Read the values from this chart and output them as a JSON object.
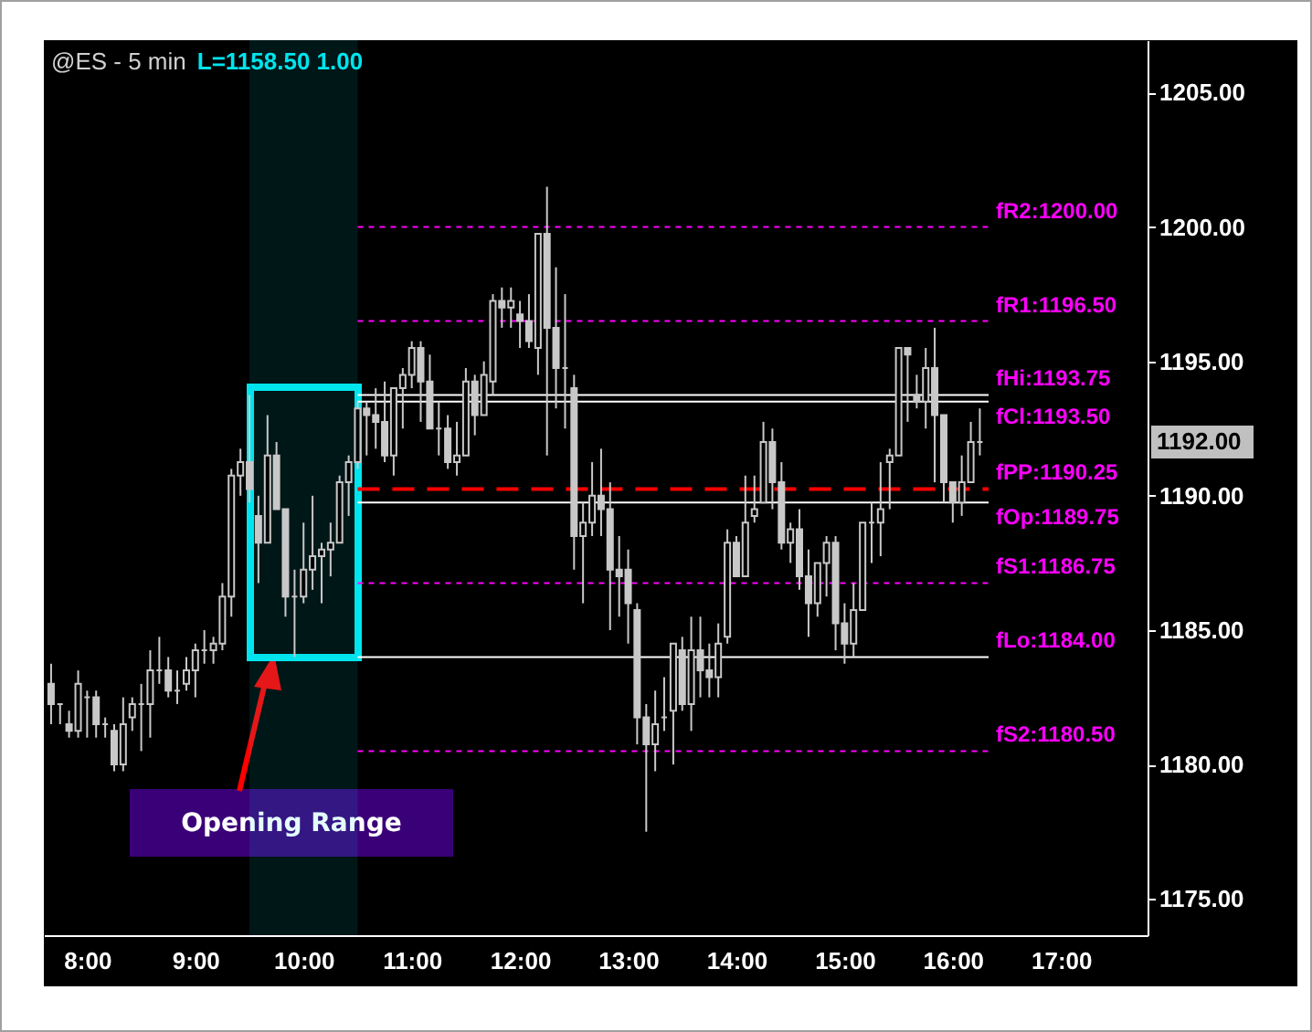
{
  "chart_data": {
    "type": "candlestick",
    "title": "@ES - 5 min",
    "subtitle": "L=1158.50  1.00",
    "x": [
      7.667,
      7.75,
      7.833,
      7.917,
      8,
      8.083,
      8.167,
      8.25,
      8.333,
      8.417,
      8.5,
      8.583,
      8.667,
      8.75,
      8.833,
      8.917,
      9,
      9.083,
      9.167,
      9.25,
      9.333,
      9.417,
      9.5,
      9.583,
      9.667,
      9.75,
      9.833,
      9.917,
      10,
      10.083,
      10.167,
      10.25,
      10.333,
      10.417,
      10.5,
      10.583,
      10.667,
      10.75,
      10.833,
      10.917,
      11,
      11.083,
      11.167,
      11.25,
      11.333,
      11.417,
      11.5,
      11.583,
      11.667,
      11.75,
      11.833,
      11.917,
      12,
      12.083,
      12.167,
      12.25,
      12.333,
      12.417,
      12.5,
      12.583,
      12.667,
      12.75,
      12.833,
      12.917,
      13,
      13.083,
      13.167,
      13.25,
      13.333,
      13.417,
      13.5,
      13.583,
      13.667,
      13.75,
      13.833,
      13.917,
      14,
      14.083,
      14.167,
      14.25,
      14.333,
      14.417,
      14.5,
      14.583,
      14.667,
      14.75,
      14.833,
      14.917,
      15,
      15.083,
      15.167,
      15.25,
      15.333,
      15.417,
      15.5,
      15.583,
      15.667,
      15.75,
      15.833,
      15.917,
      16,
      16.083,
      16.167,
      16.25
    ],
    "ohlc": [
      [
        1183,
        1183.75,
        1181.5,
        1182.25
      ],
      [
        1182.25,
        1182.25,
        1181.5,
        1182.25
      ],
      [
        1181.5,
        1182,
        1181,
        1181.25
      ],
      [
        1181.25,
        1183.5,
        1181,
        1183
      ],
      [
        1182.5,
        1182.75,
        1181,
        1182.5
      ],
      [
        1182.5,
        1182.75,
        1181,
        1181.5
      ],
      [
        1181.5,
        1181.75,
        1181,
        1181.5
      ],
      [
        1181.25,
        1181.5,
        1179.75,
        1180
      ],
      [
        1180,
        1182.5,
        1179.75,
        1181.5
      ],
      [
        1181.75,
        1182.5,
        1181.25,
        1182.25
      ],
      [
        1182.25,
        1183,
        1180.5,
        1182.25
      ],
      [
        1182.25,
        1184.25,
        1181,
        1183.5
      ],
      [
        1183.5,
        1184.75,
        1183,
        1183.5
      ],
      [
        1183.5,
        1184,
        1182.5,
        1182.75
      ],
      [
        1182.75,
        1183.5,
        1182.25,
        1182.75
      ],
      [
        1183,
        1184,
        1182.75,
        1183.5
      ],
      [
        1183.5,
        1184.5,
        1182.5,
        1184.25
      ],
      [
        1184.25,
        1185,
        1183.75,
        1184.25
      ],
      [
        1184.25,
        1184.75,
        1183.75,
        1184.5
      ],
      [
        1184.5,
        1186.75,
        1184.25,
        1186.25
      ],
      [
        1186.25,
        1191,
        1185.5,
        1190.75
      ],
      [
        1190.75,
        1191.75,
        1190,
        1191.25
      ],
      [
        1191.25,
        1193.75,
        1189.75,
        1190.25
      ],
      [
        1189.25,
        1190,
        1186.75,
        1188.25
      ],
      [
        1188.25,
        1193,
        1188.25,
        1191.5
      ],
      [
        1191.5,
        1192,
        1189.5,
        1189.5
      ],
      [
        1189.5,
        1189.5,
        1185.5,
        1186.25
      ],
      [
        1186.25,
        1187.25,
        1184,
        1186.25
      ],
      [
        1186.25,
        1189,
        1186,
        1187.25
      ],
      [
        1187.25,
        1190,
        1186.5,
        1187.75
      ],
      [
        1187.75,
        1188.25,
        1186,
        1188
      ],
      [
        1188,
        1189,
        1187,
        1188.25
      ],
      [
        1188.25,
        1190.75,
        1188.25,
        1190.5
      ],
      [
        1190.5,
        1191.5,
        1189.25,
        1191.25
      ],
      [
        1191.25,
        1193.5,
        1191,
        1193.25
      ],
      [
        1193.25,
        1193.5,
        1191.5,
        1193
      ],
      [
        1193,
        1194,
        1191.75,
        1192.75
      ],
      [
        1192.75,
        1194.25,
        1191.25,
        1191.5
      ],
      [
        1191.5,
        1194,
        1190.75,
        1194
      ],
      [
        1194,
        1194.75,
        1192.5,
        1194.5
      ],
      [
        1194.5,
        1195.75,
        1194,
        1195.5
      ],
      [
        1195.5,
        1195.75,
        1192.75,
        1194.25
      ],
      [
        1194.25,
        1195.25,
        1192.5,
        1192.5
      ],
      [
        1192.5,
        1193.5,
        1191.5,
        1192.5
      ],
      [
        1192.5,
        1193,
        1191,
        1191.25
      ],
      [
        1191.25,
        1192.75,
        1190.75,
        1191.5
      ],
      [
        1191.5,
        1194.75,
        1191.5,
        1194.25
      ],
      [
        1194.25,
        1194.5,
        1192.25,
        1193
      ],
      [
        1193,
        1195,
        1193,
        1194.5
      ],
      [
        1194.25,
        1197.5,
        1193.75,
        1197.25
      ],
      [
        1197.25,
        1197.75,
        1196.25,
        1197
      ],
      [
        1197,
        1197.75,
        1196.25,
        1197.25
      ],
      [
        1196.75,
        1197.25,
        1195.5,
        1196.5
      ],
      [
        1196.5,
        1197.5,
        1195.5,
        1195.75
      ],
      [
        1195.5,
        1199.75,
        1194.5,
        1199.75
      ],
      [
        1199.75,
        1201.5,
        1191.5,
        1196.25
      ],
      [
        1196.25,
        1198.5,
        1193.25,
        1194.75
      ],
      [
        1194.75,
        1197.5,
        1192.5,
        1194.75
      ],
      [
        1194,
        1194.5,
        1187.25,
        1188.5
      ],
      [
        1188.5,
        1189.75,
        1186,
        1189
      ],
      [
        1189,
        1191.25,
        1188.5,
        1190
      ],
      [
        1190,
        1191.75,
        1188.5,
        1189.5
      ],
      [
        1189.5,
        1190.5,
        1185,
        1187.25
      ],
      [
        1187.25,
        1188.5,
        1185.5,
        1187
      ],
      [
        1187.25,
        1188,
        1184.5,
        1186
      ],
      [
        1185.75,
        1186,
        1180.75,
        1181.75
      ],
      [
        1181.75,
        1182.25,
        1177.5,
        1180.75
      ],
      [
        1180.75,
        1182.75,
        1179.75,
        1181.5
      ],
      [
        1181.75,
        1183.25,
        1181.25,
        1181.75
      ],
      [
        1182,
        1184.5,
        1180,
        1184.5
      ],
      [
        1184.25,
        1184.75,
        1182,
        1182.25
      ],
      [
        1182.25,
        1185.5,
        1181.25,
        1184.25
      ],
      [
        1184.25,
        1185.5,
        1182.5,
        1183.5
      ],
      [
        1183.5,
        1184.5,
        1182.5,
        1183.25
      ],
      [
        1183.25,
        1185.25,
        1182.5,
        1184.5
      ],
      [
        1184.75,
        1188.75,
        1184.5,
        1188.25
      ],
      [
        1188.25,
        1188.5,
        1187,
        1187
      ],
      [
        1187,
        1190.75,
        1187,
        1189
      ],
      [
        1189.25,
        1190.75,
        1189,
        1189.5
      ],
      [
        1189.75,
        1192.75,
        1189.75,
        1192
      ],
      [
        1192,
        1192.5,
        1189.5,
        1190.5
      ],
      [
        1190.5,
        1191.25,
        1188,
        1188.25
      ],
      [
        1188.25,
        1189,
        1187.5,
        1188.75
      ],
      [
        1188.75,
        1189.5,
        1186.5,
        1187
      ],
      [
        1187,
        1188,
        1184.75,
        1186
      ],
      [
        1186,
        1187.5,
        1185.5,
        1187.5
      ],
      [
        1187.5,
        1188.5,
        1186.25,
        1188.25
      ],
      [
        1188.25,
        1188.5,
        1184.25,
        1185.25
      ],
      [
        1185.25,
        1186,
        1183.75,
        1184.5
      ],
      [
        1184.5,
        1186.75,
        1184,
        1185.75
      ],
      [
        1185.75,
        1189,
        1185.75,
        1189
      ],
      [
        1189,
        1189.75,
        1187.5,
        1189
      ],
      [
        1189,
        1191.25,
        1187.75,
        1189.5
      ],
      [
        1191.25,
        1191.75,
        1189.5,
        1191.5
      ],
      [
        1191.5,
        1195.5,
        1191.5,
        1195.5
      ],
      [
        1195.5,
        1195.5,
        1192.75,
        1195.25
      ],
      [
        1193.75,
        1194.5,
        1193.25,
        1193.5
      ],
      [
        1193.5,
        1195.5,
        1192.5,
        1194.75
      ],
      [
        1194.75,
        1196.25,
        1190.5,
        1193
      ],
      [
        1193,
        1193,
        1189.75,
        1190.5
      ],
      [
        1190.5,
        1190.5,
        1189,
        1189.75
      ],
      [
        1189.75,
        1191.5,
        1189.25,
        1190.5
      ],
      [
        1190.5,
        1192.75,
        1190.5,
        1192
      ],
      [
        1192,
        1193.25,
        1191.5,
        1192
      ]
    ],
    "color": "#c8c8c8",
    "xlim": [
      7.6,
      17.8
    ],
    "xticks": [
      {
        "value": 8,
        "label": "8:00"
      },
      {
        "value": 9,
        "label": "9:00"
      },
      {
        "value": 10,
        "label": "10:00"
      },
      {
        "value": 11,
        "label": "11:00"
      },
      {
        "value": 12,
        "label": "12:00"
      },
      {
        "value": 13,
        "label": "13:00"
      },
      {
        "value": 14,
        "label": "14:00"
      },
      {
        "value": 15,
        "label": "15:00"
      },
      {
        "value": 16,
        "label": "16:00"
      },
      {
        "value": 17,
        "label": "17:00"
      }
    ],
    "ylim": [
      1173.65,
      1206.95
    ],
    "yticks": [
      {
        "value": 1175,
        "label": "1175.00"
      },
      {
        "value": 1180,
        "label": "1180.00"
      },
      {
        "value": 1185,
        "label": "1185.00"
      },
      {
        "value": 1190,
        "label": "1190.00"
      },
      {
        "value": 1195,
        "label": "1195.00"
      },
      {
        "value": 1200,
        "label": "1200.00"
      },
      {
        "value": 1205,
        "label": "1205.00"
      }
    ],
    "bands": [
      {
        "axis": "x",
        "from": 9.5,
        "to": 10.5,
        "color": "#00e5ee"
      }
    ],
    "ref_lines": [
      {
        "axis": "y",
        "value": 1200,
        "label": "fR2:1200.00",
        "color": "#ff00ff",
        "line_style": "dotted"
      },
      {
        "axis": "y",
        "value": 1196.5,
        "label": "fR1:1196.50",
        "color": "#ff00ff",
        "line_style": "dotted"
      },
      {
        "axis": "y",
        "value": 1193.75,
        "label": "fHi:1193.75",
        "color": "#ffffff",
        "line_style": "solid"
      },
      {
        "axis": "y",
        "value": 1193.5,
        "label": "fCl:1193.50",
        "color": "#ffffff",
        "line_style": "solid"
      },
      {
        "axis": "y",
        "value": 1190.25,
        "label": "fPP:1190.25",
        "color": "#ff0000",
        "line_style": "dashed"
      },
      {
        "axis": "y",
        "value": 1189.75,
        "label": "fOp:1189.75",
        "color": "#ffffff",
        "line_style": "solid"
      },
      {
        "axis": "y",
        "value": 1186.75,
        "label": "fS1:1186.75",
        "color": "#ff00ff",
        "line_style": "dotted"
      },
      {
        "axis": "y",
        "value": 1184,
        "label": "fLo:1184.00",
        "color": "#ffffff",
        "line_style": "solid"
      },
      {
        "axis": "y",
        "value": 1180.5,
        "label": "fS2:1180.50",
        "color": "#ff00ff",
        "line_style": "dotted"
      }
    ],
    "annotations": [
      "Opening Range",
      "1192.00"
    ]
  }
}
